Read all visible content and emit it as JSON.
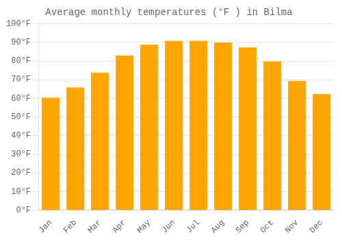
{
  "chart_data": {
    "type": "bar",
    "title": "Average monthly temperatures (°F ) in Bilma",
    "categories": [
      "Jan",
      "Feb",
      "Mar",
      "Apr",
      "May",
      "Jun",
      "Jul",
      "Aug",
      "Sep",
      "Oct",
      "Nov",
      "Dec"
    ],
    "values": [
      60.5,
      66,
      74,
      83,
      89,
      91,
      91,
      90,
      87.5,
      80,
      69.5,
      62.5
    ],
    "color": "#FFA500",
    "ylim": [
      0,
      100
    ],
    "yticks": [
      {
        "value": 0,
        "label": "0°F"
      },
      {
        "value": 10,
        "label": "10°F"
      },
      {
        "value": 20,
        "label": "20°F"
      },
      {
        "value": 30,
        "label": "30°F"
      },
      {
        "value": 40,
        "label": "40°F"
      },
      {
        "value": 50,
        "label": "50°F"
      },
      {
        "value": 60,
        "label": "60°F"
      },
      {
        "value": 70,
        "label": "70°F"
      },
      {
        "value": 80,
        "label": "80°F"
      },
      {
        "value": 90,
        "label": "90°F"
      },
      {
        "value": 100,
        "label": "100°F"
      }
    ],
    "grid": true
  }
}
